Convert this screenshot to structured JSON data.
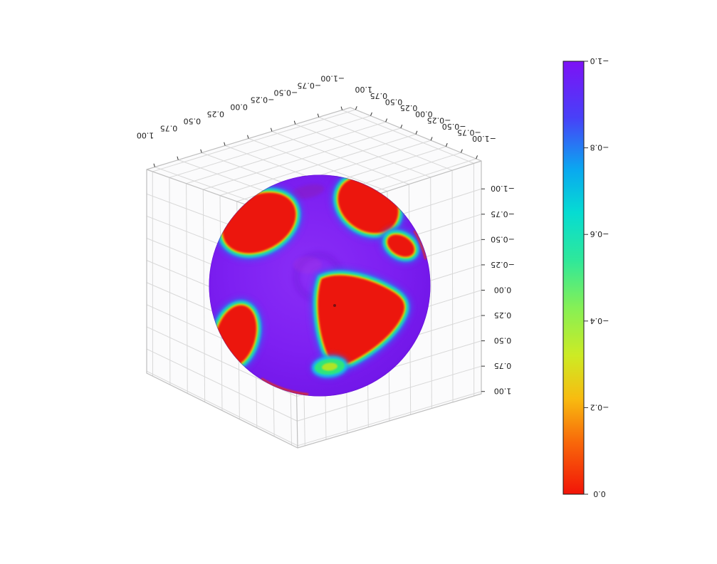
{
  "figure": {
    "background": "#ffffff",
    "orientation_note": "3D matplotlib-style figure rendered rotated 180 degrees; every tick label appears upside down"
  },
  "chart_data": {
    "type": "surface",
    "subtype": "3d-sphere-heatmap",
    "title": "",
    "colormap": "rainbow",
    "color_range": [
      -1.0,
      0.0
    ],
    "grid": true,
    "axes": {
      "x": {
        "label": "",
        "range": [
          -1.0,
          1.0
        ],
        "ticks": [
          "1.00",
          "0.75",
          "0.50",
          "0.25",
          "0.00",
          "−0.25",
          "−0.50",
          "−0.75",
          "−1.00"
        ]
      },
      "y": {
        "label": "",
        "range": [
          -1.0,
          1.0
        ],
        "ticks": [
          "1.00",
          "0.75",
          "0.50",
          "0.25",
          "0.00",
          "−0.25",
          "−0.50",
          "−0.75",
          "−1.00"
        ]
      },
      "z": {
        "label": "",
        "range": [
          -1.0,
          1.0
        ],
        "ticks": [
          "−1.00",
          "−0.75",
          "−0.50",
          "−0.25",
          "0.00",
          "0.25",
          "0.50",
          "0.75",
          "1.00"
        ]
      }
    },
    "colorbar": {
      "position": "right",
      "orientation": "vertical",
      "top_value": "−1.0",
      "bottom_value": "0.0",
      "ticks": [
        "−1.0",
        "−0.8",
        "−0.6",
        "−0.4",
        "−0.2",
        "0.0"
      ]
    },
    "colormap_stops": [
      {
        "o": 0,
        "c": "#7d12f6"
      },
      {
        "o": 0.13,
        "c": "#4840f8"
      },
      {
        "o": 0.25,
        "c": "#0aa8f0"
      },
      {
        "o": 0.35,
        "c": "#06dcd2"
      },
      {
        "o": 0.46,
        "c": "#2fe89a"
      },
      {
        "o": 0.57,
        "c": "#86f055"
      },
      {
        "o": 0.68,
        "c": "#cdeb24"
      },
      {
        "o": 0.78,
        "c": "#f8bb10"
      },
      {
        "o": 0.88,
        "c": "#f8680a"
      },
      {
        "o": 1,
        "c": "#f21408"
      }
    ],
    "colors": {
      "background": "#ffffff",
      "sphere_inner": "#8a2ef6",
      "sphere_mid": "#7e20f2",
      "sphere_outer": "#6f14e6",
      "hotspot_core": "#ec1410",
      "ring_orange": "#f59a0a",
      "ring_yellow": "#bfe51c",
      "ring_green": "#2fe57d",
      "ring_cyan": "#10cde6",
      "ring_blue": "#4653f2",
      "grid": "#d8d8d8",
      "edge": "#bfbfbf",
      "tick": "#333333",
      "text": "#1a1a1a"
    },
    "hotspot_regions": [
      "upper-left patch",
      "upper-right patch touching rim",
      "small right patch",
      "large center-right patch",
      "lower-left patch touching rim",
      "small green-yellow patch at bottom"
    ]
  }
}
